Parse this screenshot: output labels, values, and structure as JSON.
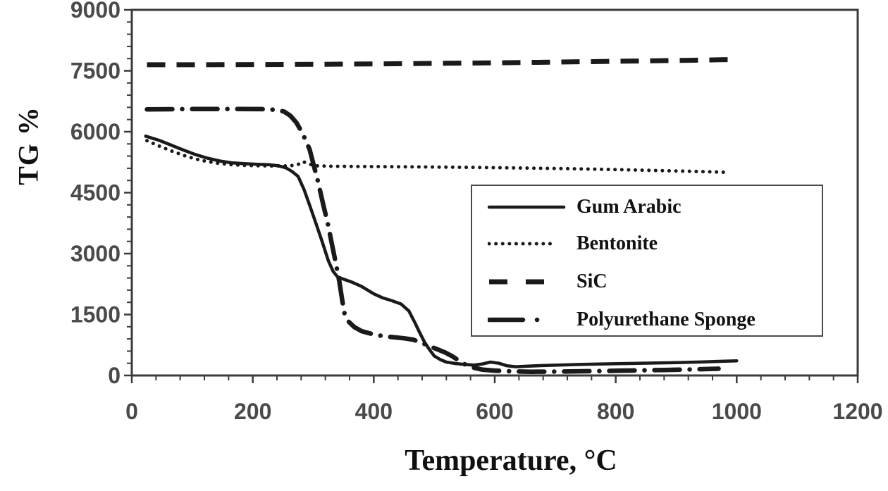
{
  "figure": {
    "background": "#ffffff",
    "ink_color": "#1a1a1a",
    "tick_label_color": "#4a4a4a",
    "frame_color": "#3a3a3a"
  },
  "chart_data": {
    "type": "line",
    "title": "",
    "xlabel": "Temperature, °C",
    "ylabel": "TG %",
    "xlim": [
      0,
      1200
    ],
    "ylim": [
      0,
      9000
    ],
    "x_ticks": [
      0,
      200,
      400,
      600,
      800,
      1000,
      1200
    ],
    "y_ticks": [
      0,
      1500,
      3000,
      4500,
      6000,
      7500,
      9000
    ],
    "x_minor_step": 40,
    "y_minor_step": 300,
    "grid": false,
    "legend_position": "inside lower-right",
    "series": [
      {
        "name": "Gum Arabic",
        "style": "solid",
        "points": [
          [
            23,
            5890
          ],
          [
            45,
            5790
          ],
          [
            65,
            5670
          ],
          [
            85,
            5550
          ],
          [
            105,
            5440
          ],
          [
            125,
            5350
          ],
          [
            145,
            5280
          ],
          [
            165,
            5235
          ],
          [
            185,
            5215
          ],
          [
            205,
            5200
          ],
          [
            225,
            5190
          ],
          [
            243,
            5160
          ],
          [
            255,
            5110
          ],
          [
            265,
            5020
          ],
          [
            275,
            4900
          ],
          [
            285,
            4570
          ],
          [
            295,
            4150
          ],
          [
            305,
            3720
          ],
          [
            315,
            3280
          ],
          [
            325,
            2820
          ],
          [
            333,
            2560
          ],
          [
            340,
            2430
          ],
          [
            350,
            2370
          ],
          [
            365,
            2290
          ],
          [
            380,
            2190
          ],
          [
            400,
            2010
          ],
          [
            415,
            1910
          ],
          [
            430,
            1840
          ],
          [
            445,
            1760
          ],
          [
            458,
            1590
          ],
          [
            468,
            1300
          ],
          [
            476,
            1050
          ],
          [
            484,
            820
          ],
          [
            492,
            640
          ],
          [
            500,
            480
          ],
          [
            510,
            390
          ],
          [
            520,
            330
          ],
          [
            535,
            295
          ],
          [
            550,
            270
          ],
          [
            565,
            255
          ],
          [
            580,
            285
          ],
          [
            593,
            330
          ],
          [
            607,
            300
          ],
          [
            620,
            240
          ],
          [
            635,
            215
          ],
          [
            655,
            230
          ],
          [
            680,
            245
          ],
          [
            705,
            255
          ],
          [
            740,
            270
          ],
          [
            780,
            285
          ],
          [
            820,
            295
          ],
          [
            860,
            305
          ],
          [
            900,
            318
          ],
          [
            940,
            332
          ],
          [
            975,
            348
          ],
          [
            1000,
            360
          ]
        ]
      },
      {
        "name": "Bentonite",
        "style": "dotted",
        "points": [
          [
            25,
            5780
          ],
          [
            45,
            5650
          ],
          [
            65,
            5530
          ],
          [
            85,
            5420
          ],
          [
            105,
            5330
          ],
          [
            125,
            5265
          ],
          [
            145,
            5220
          ],
          [
            165,
            5190
          ],
          [
            185,
            5172
          ],
          [
            210,
            5162
          ],
          [
            240,
            5156
          ],
          [
            262,
            5160
          ],
          [
            275,
            5195
          ],
          [
            283,
            5265
          ],
          [
            291,
            5215
          ],
          [
            303,
            5162
          ],
          [
            330,
            5150
          ],
          [
            370,
            5145
          ],
          [
            420,
            5140
          ],
          [
            470,
            5135
          ],
          [
            520,
            5128
          ],
          [
            570,
            5120
          ],
          [
            620,
            5112
          ],
          [
            670,
            5102
          ],
          [
            720,
            5092
          ],
          [
            770,
            5078
          ],
          [
            820,
            5062
          ],
          [
            870,
            5045
          ],
          [
            920,
            5028
          ],
          [
            960,
            5012
          ],
          [
            988,
            5000
          ]
        ]
      },
      {
        "name": "SiC",
        "style": "dashed",
        "points": [
          [
            25,
            7650
          ],
          [
            120,
            7650
          ],
          [
            220,
            7655
          ],
          [
            320,
            7662
          ],
          [
            420,
            7672
          ],
          [
            520,
            7685
          ],
          [
            620,
            7700
          ],
          [
            720,
            7718
          ],
          [
            820,
            7738
          ],
          [
            920,
            7758
          ],
          [
            988,
            7775
          ]
        ]
      },
      {
        "name": "Polyurethane Sponge",
        "style": "dashdot",
        "points": [
          [
            25,
            6550
          ],
          [
            75,
            6556
          ],
          [
            125,
            6560
          ],
          [
            175,
            6560
          ],
          [
            215,
            6556
          ],
          [
            240,
            6538
          ],
          [
            252,
            6495
          ],
          [
            262,
            6395
          ],
          [
            272,
            6225
          ],
          [
            280,
            6020
          ],
          [
            287,
            5810
          ],
          [
            294,
            5560
          ],
          [
            301,
            5160
          ],
          [
            308,
            4760
          ],
          [
            316,
            4240
          ],
          [
            324,
            3740
          ],
          [
            331,
            3220
          ],
          [
            337,
            2780
          ],
          [
            343,
            2320
          ],
          [
            348,
            1840
          ],
          [
            352,
            1500
          ],
          [
            358,
            1330
          ],
          [
            368,
            1190
          ],
          [
            380,
            1090
          ],
          [
            400,
            1010
          ],
          [
            415,
            970
          ],
          [
            430,
            945
          ],
          [
            450,
            915
          ],
          [
            465,
            882
          ],
          [
            478,
            812
          ],
          [
            492,
            722
          ],
          [
            505,
            645
          ],
          [
            518,
            565
          ],
          [
            530,
            472
          ],
          [
            542,
            352
          ],
          [
            552,
            262
          ],
          [
            565,
            192
          ],
          [
            580,
            142
          ],
          [
            600,
            120
          ],
          [
            630,
            100
          ],
          [
            660,
            92
          ],
          [
            700,
            95
          ],
          [
            745,
            104
          ],
          [
            790,
            113
          ],
          [
            835,
            124
          ],
          [
            880,
            136
          ],
          [
            920,
            148
          ],
          [
            955,
            160
          ],
          [
            970,
            166
          ]
        ]
      }
    ]
  }
}
